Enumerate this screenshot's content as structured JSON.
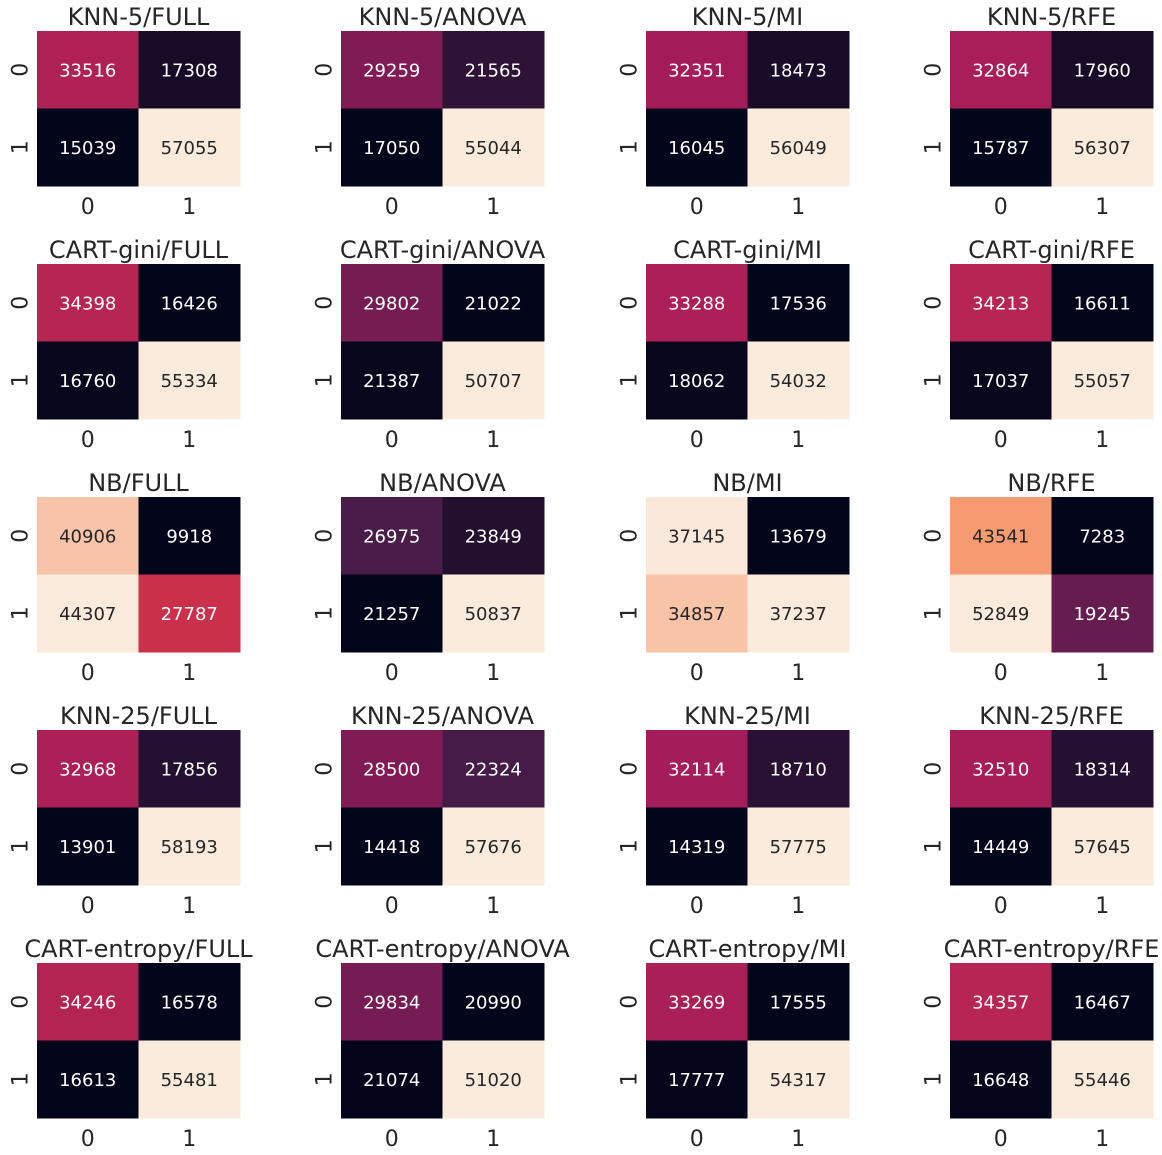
{
  "chart_data": [
    {
      "type": "heatmap",
      "title": "KNN-5/FULL",
      "x_ticks": [
        "0",
        "1"
      ],
      "y_ticks": [
        "0",
        "1"
      ],
      "values": [
        [
          33516,
          17308
        ],
        [
          15039,
          57055
        ]
      ]
    },
    {
      "type": "heatmap",
      "title": "KNN-5/ANOVA",
      "x_ticks": [
        "0",
        "1"
      ],
      "y_ticks": [
        "0",
        "1"
      ],
      "values": [
        [
          29259,
          21565
        ],
        [
          17050,
          55044
        ]
      ]
    },
    {
      "type": "heatmap",
      "title": "KNN-5/MI",
      "x_ticks": [
        "0",
        "1"
      ],
      "y_ticks": [
        "0",
        "1"
      ],
      "values": [
        [
          32351,
          18473
        ],
        [
          16045,
          56049
        ]
      ]
    },
    {
      "type": "heatmap",
      "title": "KNN-5/RFE",
      "x_ticks": [
        "0",
        "1"
      ],
      "y_ticks": [
        "0",
        "1"
      ],
      "values": [
        [
          32864,
          17960
        ],
        [
          15787,
          56307
        ]
      ]
    },
    {
      "type": "heatmap",
      "title": "CART-gini/FULL",
      "x_ticks": [
        "0",
        "1"
      ],
      "y_ticks": [
        "0",
        "1"
      ],
      "values": [
        [
          34398,
          16426
        ],
        [
          16760,
          55334
        ]
      ]
    },
    {
      "type": "heatmap",
      "title": "CART-gini/ANOVA",
      "x_ticks": [
        "0",
        "1"
      ],
      "y_ticks": [
        "0",
        "1"
      ],
      "values": [
        [
          29802,
          21022
        ],
        [
          21387,
          50707
        ]
      ]
    },
    {
      "type": "heatmap",
      "title": "CART-gini/MI",
      "x_ticks": [
        "0",
        "1"
      ],
      "y_ticks": [
        "0",
        "1"
      ],
      "values": [
        [
          33288,
          17536
        ],
        [
          18062,
          54032
        ]
      ]
    },
    {
      "type": "heatmap",
      "title": "CART-gini/RFE",
      "x_ticks": [
        "0",
        "1"
      ],
      "y_ticks": [
        "0",
        "1"
      ],
      "values": [
        [
          34213,
          16611
        ],
        [
          17037,
          55057
        ]
      ]
    },
    {
      "type": "heatmap",
      "title": "NB/FULL",
      "x_ticks": [
        "0",
        "1"
      ],
      "y_ticks": [
        "0",
        "1"
      ],
      "values": [
        [
          40906,
          9918
        ],
        [
          44307,
          27787
        ]
      ]
    },
    {
      "type": "heatmap",
      "title": "NB/ANOVA",
      "x_ticks": [
        "0",
        "1"
      ],
      "y_ticks": [
        "0",
        "1"
      ],
      "values": [
        [
          26975,
          23849
        ],
        [
          21257,
          50837
        ]
      ]
    },
    {
      "type": "heatmap",
      "title": "NB/MI",
      "x_ticks": [
        "0",
        "1"
      ],
      "y_ticks": [
        "0",
        "1"
      ],
      "values": [
        [
          37145,
          13679
        ],
        [
          34857,
          37237
        ]
      ]
    },
    {
      "type": "heatmap",
      "title": "NB/RFE",
      "x_ticks": [
        "0",
        "1"
      ],
      "y_ticks": [
        "0",
        "1"
      ],
      "values": [
        [
          43541,
          7283
        ],
        [
          52849,
          19245
        ]
      ]
    },
    {
      "type": "heatmap",
      "title": "KNN-25/FULL",
      "x_ticks": [
        "0",
        "1"
      ],
      "y_ticks": [
        "0",
        "1"
      ],
      "values": [
        [
          32968,
          17856
        ],
        [
          13901,
          58193
        ]
      ]
    },
    {
      "type": "heatmap",
      "title": "KNN-25/ANOVA",
      "x_ticks": [
        "0",
        "1"
      ],
      "y_ticks": [
        "0",
        "1"
      ],
      "values": [
        [
          28500,
          22324
        ],
        [
          14418,
          57676
        ]
      ]
    },
    {
      "type": "heatmap",
      "title": "KNN-25/MI",
      "x_ticks": [
        "0",
        "1"
      ],
      "y_ticks": [
        "0",
        "1"
      ],
      "values": [
        [
          32114,
          18710
        ],
        [
          14319,
          57775
        ]
      ]
    },
    {
      "type": "heatmap",
      "title": "KNN-25/RFE",
      "x_ticks": [
        "0",
        "1"
      ],
      "y_ticks": [
        "0",
        "1"
      ],
      "values": [
        [
          32510,
          18314
        ],
        [
          14449,
          57645
        ]
      ]
    },
    {
      "type": "heatmap",
      "title": "CART-entropy/FULL",
      "x_ticks": [
        "0",
        "1"
      ],
      "y_ticks": [
        "0",
        "1"
      ],
      "values": [
        [
          34246,
          16578
        ],
        [
          16613,
          55481
        ]
      ]
    },
    {
      "type": "heatmap",
      "title": "CART-entropy/ANOVA",
      "x_ticks": [
        "0",
        "1"
      ],
      "y_ticks": [
        "0",
        "1"
      ],
      "values": [
        [
          29834,
          20990
        ],
        [
          21074,
          51020
        ]
      ]
    },
    {
      "type": "heatmap",
      "title": "CART-entropy/MI",
      "x_ticks": [
        "0",
        "1"
      ],
      "y_ticks": [
        "0",
        "1"
      ],
      "values": [
        [
          33269,
          17555
        ],
        [
          17777,
          54317
        ]
      ]
    },
    {
      "type": "heatmap",
      "title": "CART-entropy/RFE",
      "x_ticks": [
        "0",
        "1"
      ],
      "y_ticks": [
        "0",
        "1"
      ],
      "values": [
        [
          34357,
          16467
        ],
        [
          16648,
          55446
        ]
      ]
    }
  ],
  "colormap": "rocket",
  "colormap_stops": [
    "#03051a",
    "#4c1d4b",
    "#a11a5b",
    "#e83f3f",
    "#f69c73",
    "#faebdd"
  ],
  "text_color_dark": "#262626",
  "text_color_light": "#ffffff"
}
